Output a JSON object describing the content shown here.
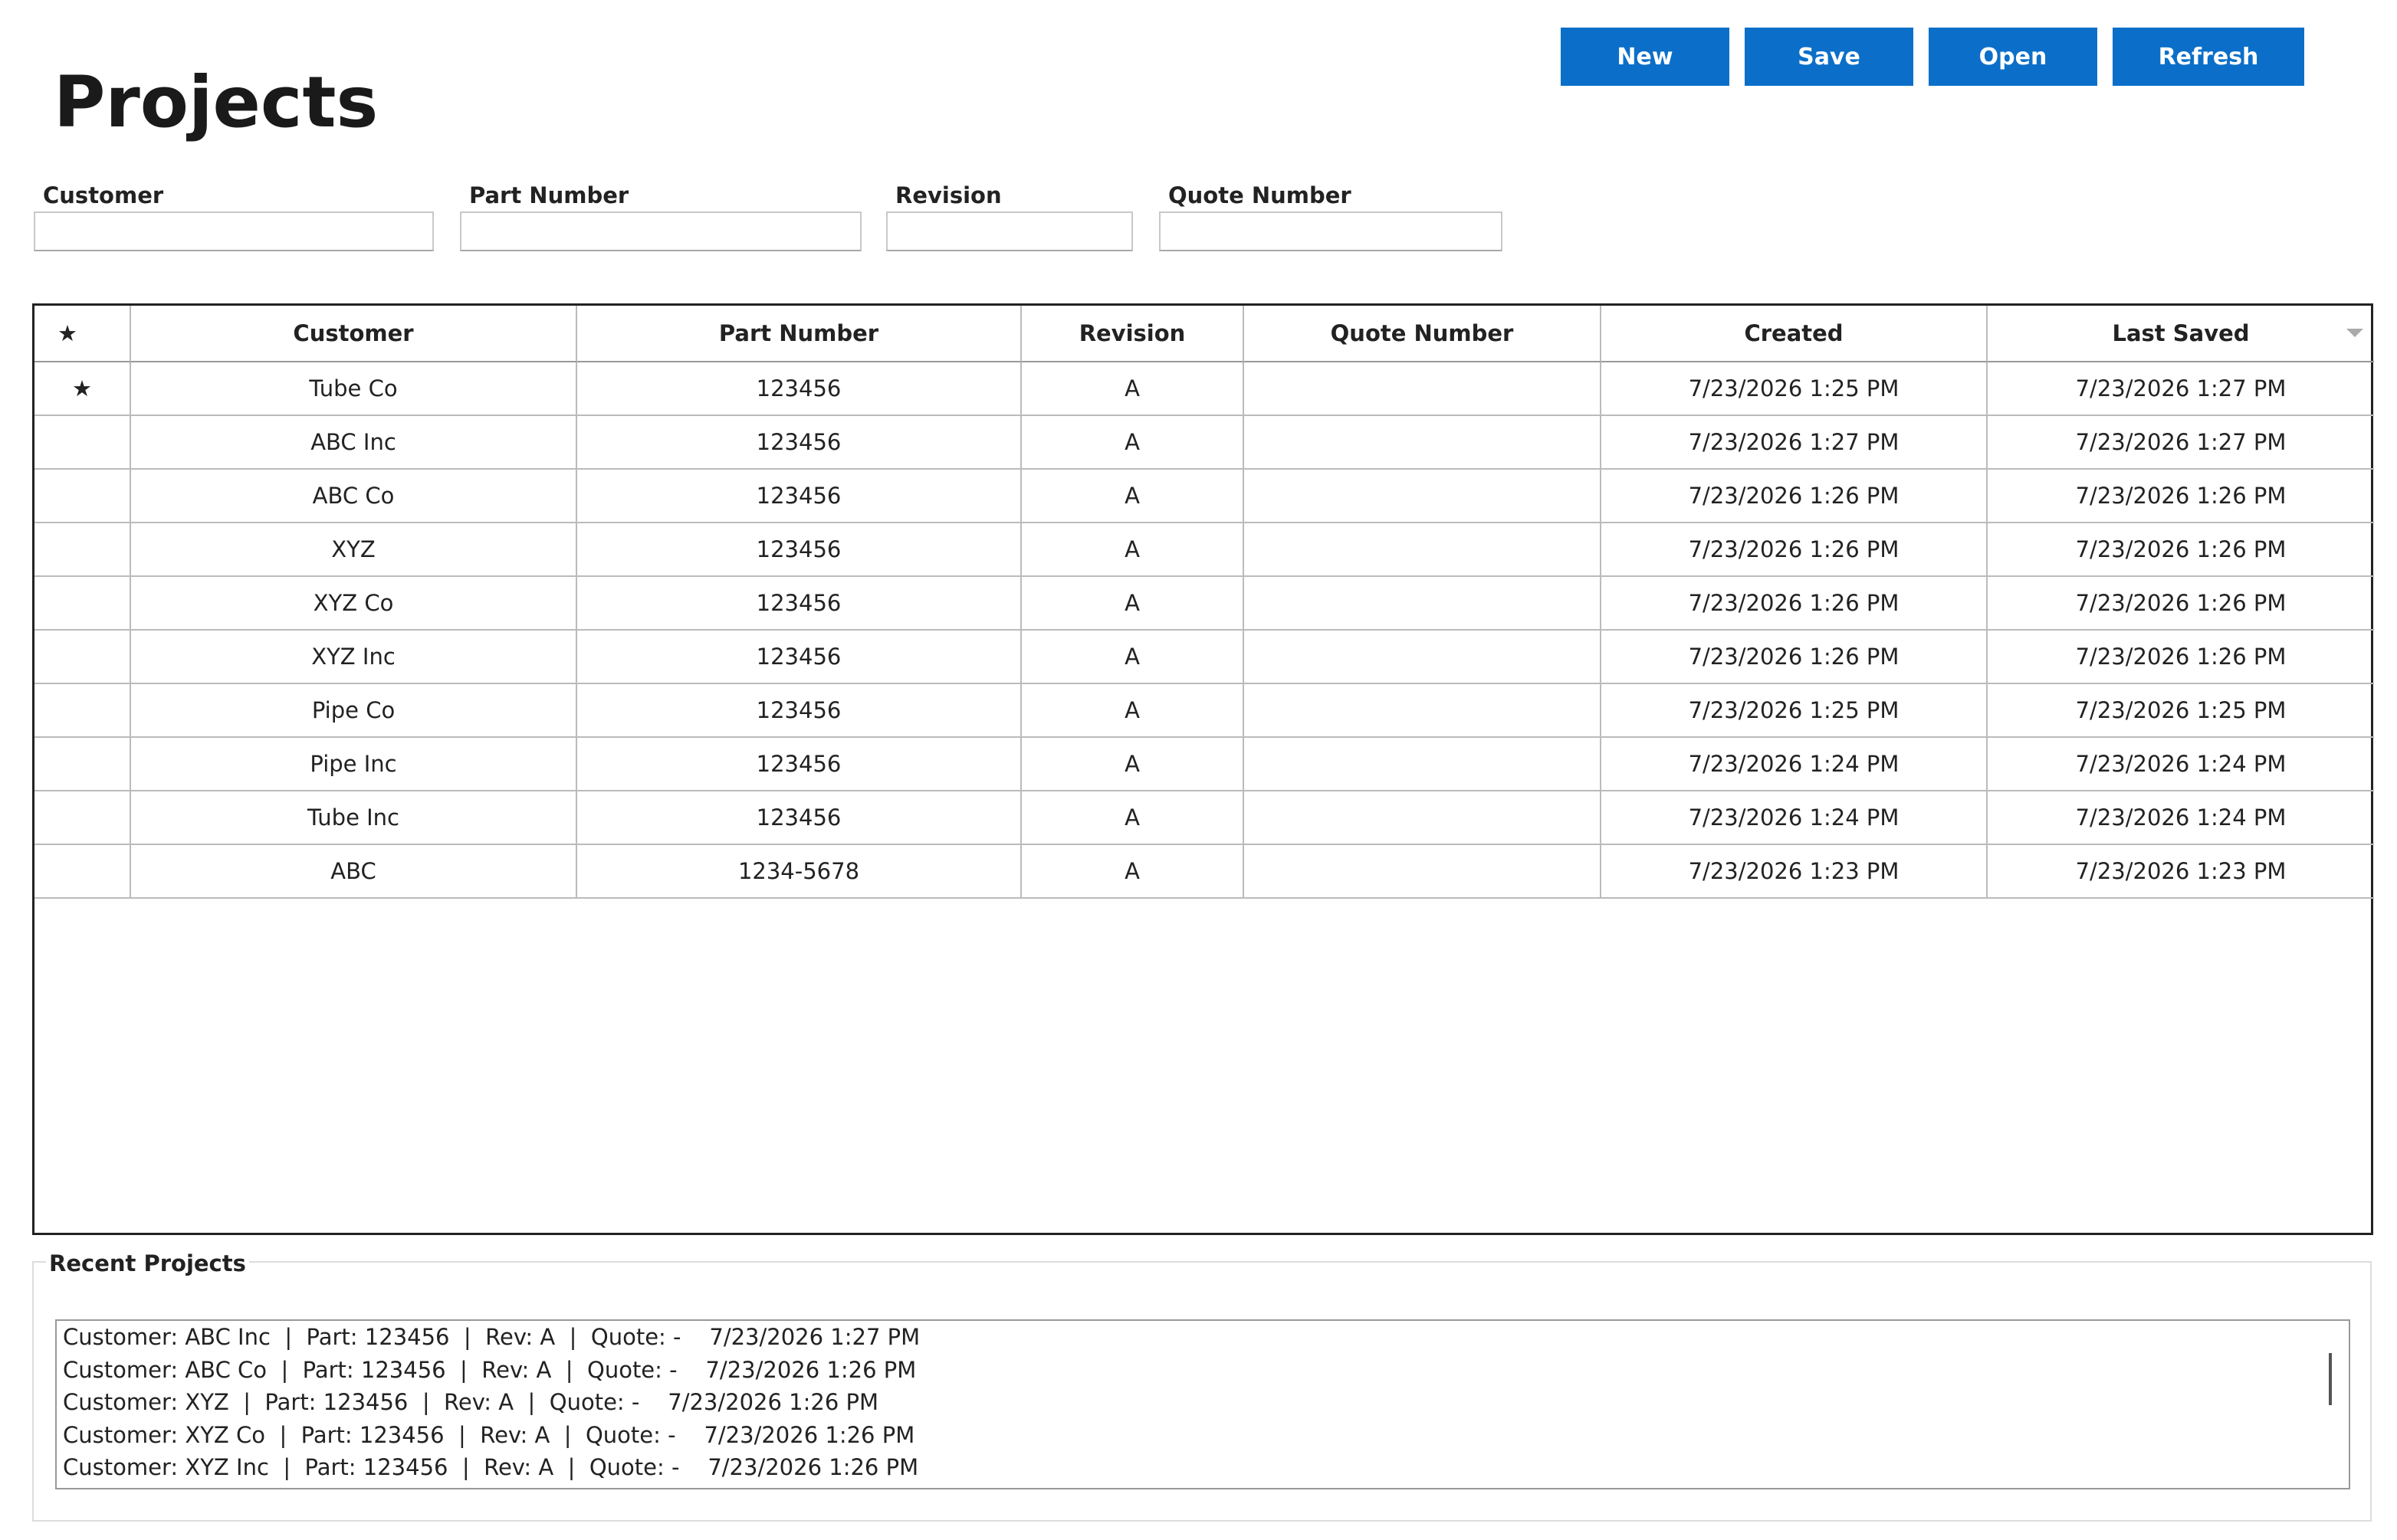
{
  "header": {
    "title": "Projects"
  },
  "buttons": [
    "New",
    "Save",
    "Open",
    "Refresh"
  ],
  "filters": [
    "Customer",
    "Part Number",
    "Revision",
    "Quote Number"
  ],
  "table": {
    "columns": [
      "★",
      "Customer",
      "Part Number",
      "Revision",
      "Quote Number",
      "Created",
      "Last Saved"
    ],
    "rows": [
      {
        "favorite": "★",
        "customer": "Tube Co",
        "part_number": "123456",
        "revision": "A",
        "created": "7/23/2026 1:25 PM",
        "last_saved": "7/23/2026 1:27 PM"
      },
      {
        "customer": "ABC Inc",
        "part_number": "123456",
        "revision": "A",
        "created": "7/23/2026 1:27 PM",
        "last_saved": "7/23/2026 1:27 PM"
      },
      {
        "customer": "ABC Co",
        "part_number": "123456",
        "revision": "A",
        "created": "7/23/2026 1:26 PM",
        "last_saved": "7/23/2026 1:26 PM"
      },
      {
        "customer": "XYZ",
        "part_number": "123456",
        "revision": "A",
        "created": "7/23/2026 1:26 PM",
        "last_saved": "7/23/2026 1:26 PM"
      },
      {
        "customer": "XYZ Co",
        "part_number": "123456",
        "revision": "A",
        "created": "7/23/2026 1:26 PM",
        "last_saved": "7/23/2026 1:26 PM"
      },
      {
        "customer": "XYZ Inc",
        "part_number": "123456",
        "revision": "A",
        "created": "7/23/2026 1:26 PM",
        "last_saved": "7/23/2026 1:26 PM"
      },
      {
        "customer": "Pipe Co",
        "part_number": "123456",
        "revision": "A",
        "created": "7/23/2026 1:25 PM",
        "last_saved": "7/23/2026 1:25 PM"
      },
      {
        "customer": "Pipe Inc",
        "part_number": "123456",
        "revision": "A",
        "created": "7/23/2026 1:24 PM",
        "last_saved": "7/23/2026 1:24 PM"
      },
      {
        "customer": "Tube Inc",
        "part_number": "123456",
        "revision": "A",
        "created": "7/23/2026 1:24 PM",
        "last_saved": "7/23/2026 1:24 PM"
      },
      {
        "customer": "ABC",
        "part_number": "1234-5678",
        "revision": "A",
        "created": "7/23/2026 1:23 PM",
        "last_saved": "7/23/2026 1:23 PM"
      }
    ]
  },
  "recent": {
    "title": "Recent Projects",
    "items": [
      "Customer: ABC Inc  |  Part: 123456  |  Rev: A  |  Quote: -    7/23/2026 1:27 PM",
      "Customer: ABC Co  |  Part: 123456  |  Rev: A  |  Quote: -    7/23/2026 1:26 PM",
      "Customer: XYZ  |  Part: 123456  |  Rev: A  |  Quote: -    7/23/2026 1:26 PM",
      "Customer: XYZ Co  |  Part: 123456  |  Rev: A  |  Quote: -    7/23/2026 1:26 PM",
      "Customer: XYZ Inc  |  Part: 123456  |  Rev: A  |  Quote: -    7/23/2026 1:26 PM"
    ]
  }
}
